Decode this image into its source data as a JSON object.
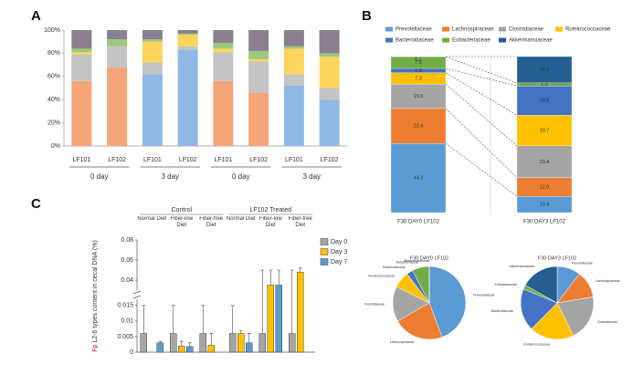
{
  "chart_data": [
    {
      "panel": "A",
      "type": "bar",
      "stacked": true,
      "categories": [
        "LF101",
        "LF102",
        "LF101",
        "LF102",
        "LF101",
        "LF102",
        "LF101",
        "LF102"
      ],
      "groups": [
        "0 day",
        "3 day",
        "0 day",
        "3 day"
      ],
      "series": [
        {
          "color": "#f4a57a",
          "values": [
            56,
            68,
            0,
            0,
            56,
            46,
            0,
            0
          ]
        },
        {
          "color": "#90b8e6",
          "values": [
            0,
            0,
            62,
            83,
            0,
            0,
            52,
            40
          ]
        },
        {
          "color": "#c4c4c4",
          "values": [
            23,
            18,
            10,
            3,
            25,
            27,
            10,
            10
          ]
        },
        {
          "color": "#fcd55a",
          "values": [
            2,
            0,
            18,
            10,
            3,
            2,
            22,
            27
          ]
        },
        {
          "color": "#9bc87a",
          "values": [
            3,
            6,
            2,
            1,
            5,
            7,
            2,
            3
          ]
        },
        {
          "color": "#8a7f8e",
          "values": [
            16,
            8,
            8,
            3,
            11,
            18,
            14,
            20
          ]
        }
      ],
      "ylim": [
        0,
        100
      ],
      "yticks": [
        {
          "value": 0,
          "label": "0%"
        },
        {
          "value": 20,
          "label": "20%"
        },
        {
          "value": 40,
          "label": "40%"
        },
        {
          "value": 60,
          "label": "60%"
        },
        {
          "value": 80,
          "label": "80%"
        },
        {
          "value": 100,
          "label": "100%"
        }
      ]
    },
    {
      "panel": "B",
      "type": "bar",
      "stacked": true,
      "pies": true,
      "categories": [
        "F30 DAY0 LF102",
        "F30 DAY3 LF102"
      ],
      "series": [
        {
          "name": "Prevotellaceae",
          "color": "#5b9bd5",
          "values": [
            44.3,
            10.4
          ]
        },
        {
          "name": "Lachnospiraceae",
          "color": "#ed7d31",
          "values": [
            22.4,
            12.0
          ],
          "value_labels": [
            "22.4",
            "12.0"
          ]
        },
        {
          "name": "Clostridiaceae",
          "color": "#a5a5a5",
          "values": [
            15.6,
            20.4
          ]
        },
        {
          "name": "Ruminococcaceae",
          "color": "#ffc000",
          "values": [
            7.3,
            19.7
          ]
        },
        {
          "name": "Bacteroidaceae",
          "color": "#4472c4",
          "values": [
            2.8,
            18.8
          ]
        },
        {
          "name": "Eubacteriaceae",
          "color": "#70ad47",
          "values": [
            7.5,
            1.9
          ]
        },
        {
          "name": "Akkermansiaceae",
          "color": "#255e91",
          "values": [
            0.1,
            16.9
          ]
        }
      ]
    },
    {
      "panel": "C",
      "type": "box",
      "ylabel_prefix": "Fp",
      "ylabel": "L2-6 types content in cecal DNA (%)",
      "groups": [
        "Control",
        "LF102 Treated"
      ],
      "categories": [
        "Normal Diet",
        "Fiber-low Diet",
        "Fiber-free Diet",
        "Normal Diet",
        "Fiber-low Diet",
        "Fiber-free Diet"
      ],
      "series": [
        {
          "name": "Day 0",
          "color": "#a6a6a6",
          "values": [
            0.006,
            0.006,
            0.006,
            0.006,
            0.006,
            0.006
          ],
          "upper": [
            0.015,
            0.015,
            0.015,
            0.015,
            0.05,
            0.05
          ]
        },
        {
          "name": "Day 3",
          "color": "#ffc000",
          "values": [
            null,
            0.002,
            0.0022,
            0.006,
            0.035,
            0.048
          ],
          "upper": [
            null,
            0.0035,
            0.006,
            0.007,
            0.05,
            0.052
          ]
        },
        {
          "name": "Day 7",
          "color": "#5b9bd5",
          "values": [
            0.003,
            0.0018,
            null,
            0.003,
            0.035,
            null
          ],
          "upper": [
            0.0035,
            0.003,
            null,
            0.006,
            0.05,
            null
          ]
        }
      ],
      "ylim": [
        0,
        0.08
      ],
      "ylim_break": [
        0.017,
        0.03
      ],
      "yticks": [
        0,
        0.005,
        0.01,
        0.015,
        0.04,
        0.06,
        0.08
      ],
      "legend": "upper right"
    }
  ]
}
